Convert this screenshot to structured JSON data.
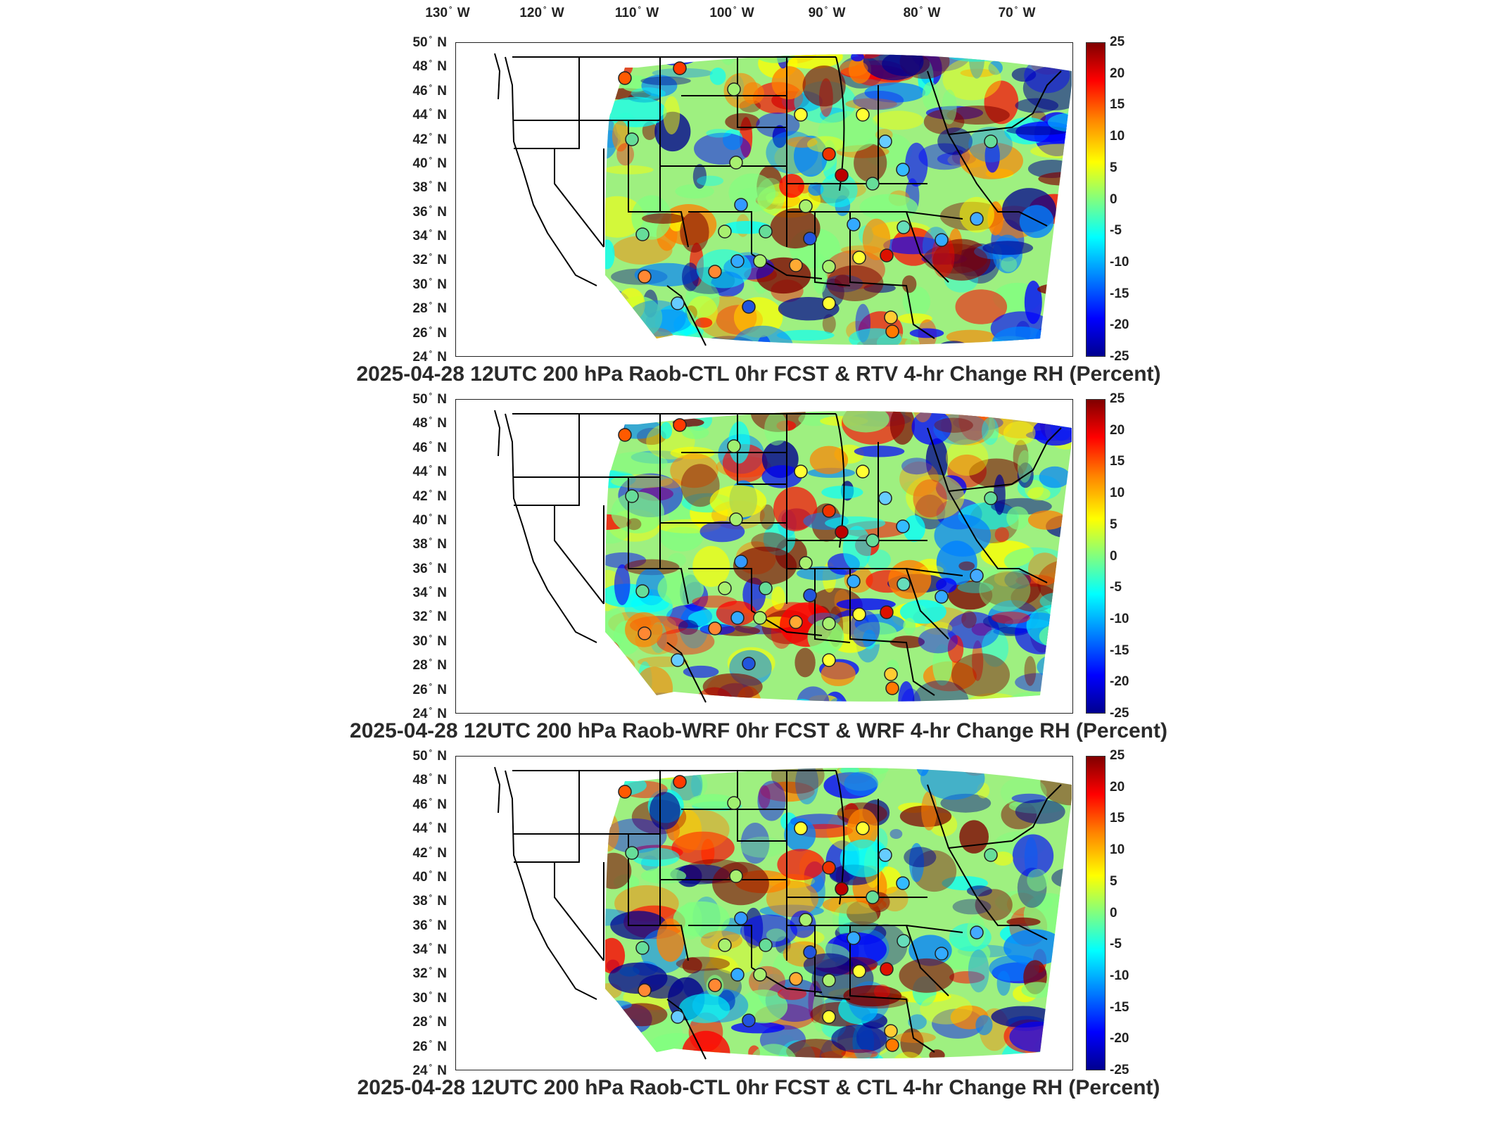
{
  "lon_labels": [
    {
      "deg": "130",
      "hem": "W"
    },
    {
      "deg": "120",
      "hem": "W"
    },
    {
      "deg": "110",
      "hem": "W"
    },
    {
      "deg": "100",
      "hem": "W"
    },
    {
      "deg": "90",
      "hem": "W"
    },
    {
      "deg": "80",
      "hem": "W"
    },
    {
      "deg": "70",
      "hem": "W"
    }
  ],
  "lat_labels": [
    {
      "deg": "50",
      "hem": "N"
    },
    {
      "deg": "48",
      "hem": "N"
    },
    {
      "deg": "46",
      "hem": "N"
    },
    {
      "deg": "44",
      "hem": "N"
    },
    {
      "deg": "42",
      "hem": "N"
    },
    {
      "deg": "40",
      "hem": "N"
    },
    {
      "deg": "38",
      "hem": "N"
    },
    {
      "deg": "36",
      "hem": "N"
    },
    {
      "deg": "34",
      "hem": "N"
    },
    {
      "deg": "32",
      "hem": "N"
    },
    {
      "deg": "30",
      "hem": "N"
    },
    {
      "deg": "28",
      "hem": "N"
    },
    {
      "deg": "26",
      "hem": "N"
    },
    {
      "deg": "24",
      "hem": "N"
    }
  ],
  "colorbar_ticks": [
    "25",
    "20",
    "15",
    "10",
    "5",
    "0",
    "-5",
    "-10",
    "-15",
    "-20",
    "-25"
  ],
  "colorbar_colors": [
    "#800000",
    "#ff0000",
    "#ff8000",
    "#ffff00",
    "#80ff80",
    "#00ffff",
    "#0080ff",
    "#0000ff",
    "#00008f"
  ],
  "panels": [
    {
      "title": "2025-04-28 12UTC 200 hPa Raob-CTL 0hr FCST & RTV 4-hr Change RH (Percent)"
    },
    {
      "title": "2025-04-28 12UTC 200 hPa Raob-WRF 0hr FCST & WRF 4-hr Change RH (Percent)"
    },
    {
      "title": "2025-04-28 12UTC 200 hPa Raob-CTL 0hr FCST & CTL 4-hr Change RH (Percent)"
    }
  ]
}
